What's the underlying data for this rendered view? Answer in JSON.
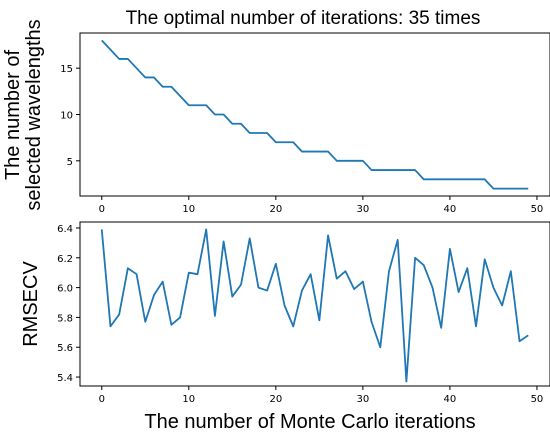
{
  "chart_data": [
    {
      "type": "line",
      "title": "The optimal number of iterations: 35 times",
      "xlabel": "",
      "ylabel_lines": [
        "The number of",
        "selected wavelengths"
      ],
      "xlim": [
        -2.5,
        51.5
      ],
      "ylim": [
        1.2,
        18.8
      ],
      "xticks": [
        0,
        10,
        20,
        30,
        40,
        50
      ],
      "yticks": [
        5,
        10,
        15
      ],
      "color": "#1f77b4",
      "grid": false,
      "series": [
        {
          "x": [
            0,
            1,
            2,
            3,
            4,
            5,
            6,
            7,
            8,
            9,
            10,
            11,
            12,
            13,
            14,
            15,
            16,
            17,
            18,
            19,
            20,
            21,
            22,
            23,
            24,
            25,
            26,
            27,
            28,
            29,
            30,
            31,
            32,
            33,
            34,
            35,
            36,
            37,
            38,
            39,
            40,
            41,
            42,
            43,
            44,
            45,
            46,
            47,
            48,
            49
          ],
          "values": [
            18,
            17,
            16,
            16,
            15,
            14,
            14,
            13,
            13,
            12,
            11,
            11,
            11,
            10,
            10,
            9,
            9,
            8,
            8,
            8,
            7,
            7,
            7,
            6,
            6,
            6,
            6,
            5,
            5,
            5,
            5,
            4,
            4,
            4,
            4,
            4,
            4,
            3,
            3,
            3,
            3,
            3,
            3,
            3,
            3,
            2,
            2,
            2,
            2,
            2
          ]
        }
      ]
    },
    {
      "type": "line",
      "title": "",
      "xlabel": "The number of Monte Carlo iterations",
      "ylabel": "RMSECV",
      "xlim": [
        -2.5,
        51.5
      ],
      "ylim": [
        5.34,
        6.44
      ],
      "xticks": [
        0,
        10,
        20,
        30,
        40,
        50
      ],
      "yticks": [
        5.4,
        5.6,
        5.8,
        6.0,
        6.2,
        6.4
      ],
      "ytick_labels": [
        "5.4",
        "5.6",
        "5.8",
        "6.0",
        "6.2",
        "6.4"
      ],
      "color": "#1f77b4",
      "grid": false,
      "series": [
        {
          "x": [
            0,
            1,
            2,
            3,
            4,
            5,
            6,
            7,
            8,
            9,
            10,
            11,
            12,
            13,
            14,
            15,
            16,
            17,
            18,
            19,
            20,
            21,
            22,
            23,
            24,
            25,
            26,
            27,
            28,
            29,
            30,
            31,
            32,
            33,
            34,
            35,
            36,
            37,
            38,
            39,
            40,
            41,
            42,
            43,
            44,
            45,
            46,
            47,
            48,
            49
          ],
          "values": [
            6.39,
            5.74,
            5.82,
            6.13,
            6.09,
            5.77,
            5.95,
            6.04,
            5.75,
            5.8,
            6.1,
            6.09,
            6.39,
            5.81,
            6.31,
            5.94,
            6.02,
            6.33,
            6.0,
            5.98,
            6.16,
            5.88,
            5.74,
            5.98,
            6.09,
            5.78,
            6.35,
            6.06,
            6.11,
            5.99,
            6.04,
            5.77,
            5.6,
            6.11,
            6.32,
            5.37,
            6.2,
            6.15,
            6.0,
            5.73,
            6.26,
            5.97,
            6.13,
            5.74,
            6.19,
            6.0,
            5.88,
            6.11,
            5.64,
            5.68
          ]
        }
      ]
    }
  ]
}
